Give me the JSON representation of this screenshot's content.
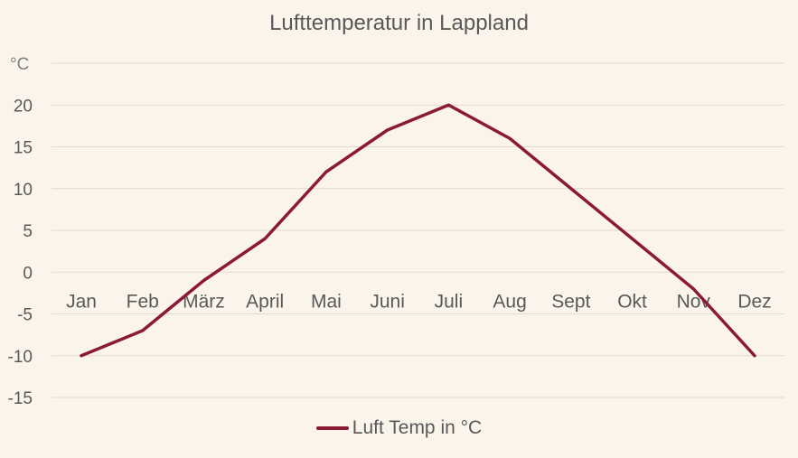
{
  "chart_data": {
    "type": "line",
    "title": "Lufttemperatur in Lappland",
    "ylabel": "°C",
    "xlabel": "",
    "categories": [
      "Jan",
      "Feb",
      "März",
      "April",
      "Mai",
      "Juni",
      "Juli",
      "Aug",
      "Sept",
      "Okt",
      "Nov",
      "Dez"
    ],
    "series": [
      {
        "name": "Luft Temp in °C",
        "color": "#8b1a35",
        "values": [
          -10,
          -7,
          -1,
          4,
          12,
          17,
          20,
          16,
          10,
          4,
          -2,
          -10
        ]
      }
    ],
    "ylim": [
      -15,
      25
    ],
    "yticks": [
      -15,
      -10,
      -5,
      0,
      5,
      10,
      15,
      20
    ],
    "grid": true,
    "legend_position": "bottom"
  },
  "colors": {
    "background": "#fbf4ea",
    "gridline": "#e2dad2",
    "text": "#595959"
  }
}
